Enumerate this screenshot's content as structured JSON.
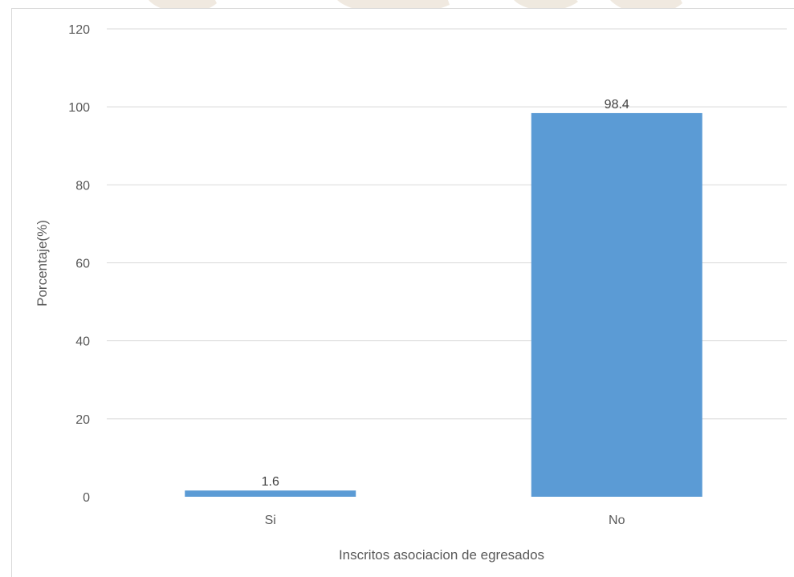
{
  "chart_data": {
    "type": "bar",
    "categories": [
      "Si",
      "No"
    ],
    "values": [
      1.6,
      98.4
    ],
    "data_labels": [
      "1.6",
      "98.4"
    ],
    "title": "",
    "xlabel": "Inscritos asociacion de egresados",
    "ylabel": "Porcentaje(%)",
    "ylim": [
      0,
      120
    ],
    "yticks": [
      "0",
      "20",
      "40",
      "60",
      "80",
      "100",
      "120"
    ],
    "grid": true,
    "legend": "none",
    "bar_color": "#5b9bd5",
    "grid_color": "#d9d9d9",
    "text_color": "#595959"
  }
}
